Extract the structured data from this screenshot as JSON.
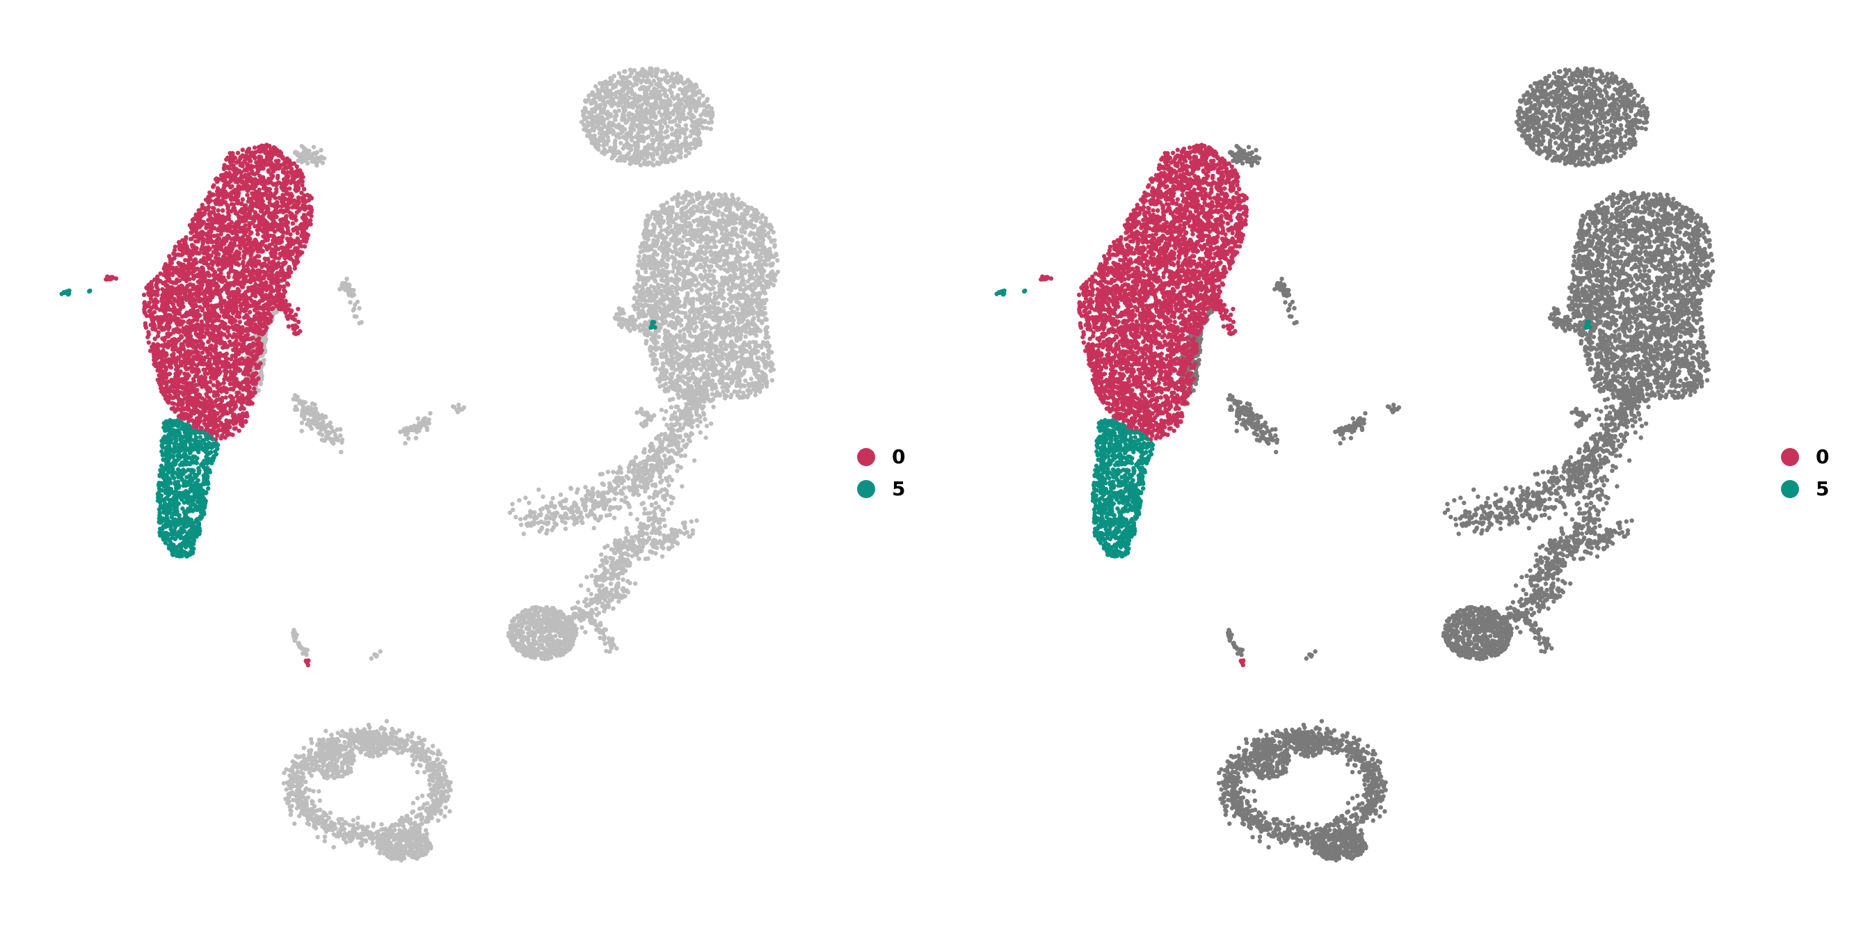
{
  "chart_data": [
    {
      "type": "scatter",
      "title": "",
      "xlabel": "",
      "ylabel": "",
      "axes_visible": false,
      "grid": false,
      "legend_placement": "right",
      "background_color": "#bdbdbd",
      "highlighted": [
        {
          "name": "0",
          "color": "#c8325a"
        },
        {
          "name": "5",
          "color": "#0a9182"
        }
      ]
    },
    {
      "type": "scatter",
      "title": "",
      "xlabel": "",
      "ylabel": "",
      "axes_visible": false,
      "grid": false,
      "legend_placement": "right",
      "background_color": "#7a7a7a",
      "highlighted": [
        {
          "name": "0",
          "color": "#c8325a"
        },
        {
          "name": "5",
          "color": "#0a9182"
        }
      ]
    }
  ]
}
